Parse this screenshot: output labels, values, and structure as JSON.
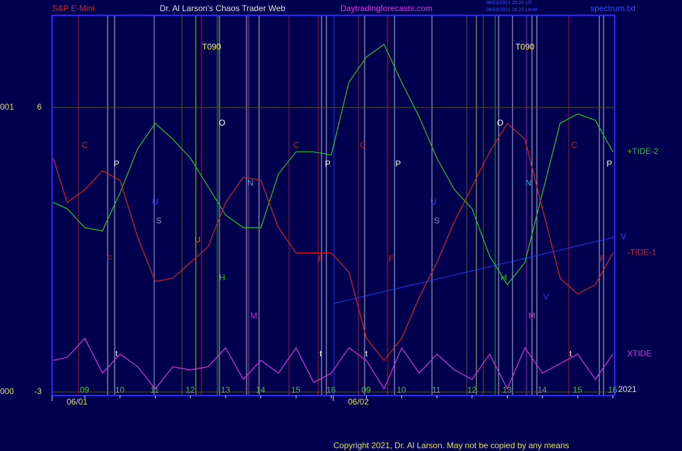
{
  "chart_data": {
    "type": "line",
    "header": {
      "instrument": "S&P E-Mini",
      "site": "Dr. Al Larson's Chaos Trader Web",
      "url": "Daytradingforecasts.com",
      "stamp_ut": "06/03/2021 20:20 UT",
      "stamp_local": "06/03/2021 16:20 Local",
      "file": "spectrum.txt"
    },
    "footer": "Copyright 2021, Dr. Al Larson. May not be copied by any means",
    "year": "2021",
    "x": [
      8.1,
      8.5,
      9,
      9.5,
      10,
      10.5,
      11,
      11.5,
      12,
      12.5,
      13,
      13.5,
      14,
      14.5,
      15,
      15.5,
      16,
      16.5,
      17,
      17.5,
      18,
      18.5,
      19,
      19.5,
      20,
      20.5,
      21,
      21.5,
      22,
      22.5,
      23,
      23.5,
      24
    ],
    "xlim": [
      8.07,
      24.05
    ],
    "xticks": [
      {
        "value": 9,
        "label": "09"
      },
      10,
      11,
      12,
      13,
      14,
      15,
      16,
      {
        "value": 17,
        "label": "09"
      },
      {
        "value": 18,
        "label": "10"
      },
      {
        "value": 19,
        "label": "11"
      },
      {
        "value": 20,
        "label": "12"
      },
      {
        "value": 21,
        "label": "13"
      },
      {
        "value": 22,
        "label": "14"
      },
      {
        "value": 23,
        "label": "15"
      },
      {
        "value": 24,
        "label": "16"
      }
    ],
    "date_ticks": [
      {
        "value": 8.07,
        "label": "06/01"
      },
      {
        "value": 16.06,
        "label": "06/02"
      }
    ],
    "ylim": [
      -3.11,
      8.92
    ],
    "yticks": [
      6,
      -3
    ],
    "price_labels": [
      "001",
      "000"
    ],
    "grid": true,
    "series": [
      {
        "name": "+TIDE-2",
        "color": "#20d020",
        "values": [
          3.0,
          2.8,
          2.2,
          2.1,
          3.3,
          4.7,
          5.5,
          5.0,
          4.4,
          3.5,
          2.6,
          2.2,
          2.2,
          3.9,
          4.6,
          4.6,
          4.5,
          6.8,
          7.6,
          8.0,
          6.8,
          5.7,
          4.4,
          3.4,
          2.8,
          1.3,
          0.4,
          1.1,
          3.3,
          5.5,
          5.8,
          5.6,
          4.6
        ]
      },
      {
        "name": "-TIDE-1",
        "color": "#e02020",
        "values": [
          4.4,
          3.0,
          3.4,
          4.0,
          3.7,
          1.9,
          0.5,
          0.6,
          1.1,
          1.6,
          3.0,
          3.8,
          3.7,
          2.2,
          1.4,
          1.4,
          1.4,
          0.8,
          -1.3,
          -2.0,
          -1.3,
          0.0,
          1.1,
          2.4,
          3.5,
          4.6,
          5.5,
          5.0,
          2.8,
          0.6,
          0.1,
          0.4,
          1.4
        ]
      },
      {
        "name": "XTIDE",
        "color": "#e030e0",
        "values": [
          -2.0,
          -1.9,
          -1.3,
          -2.4,
          -1.8,
          -2.2,
          -2.9,
          -2.2,
          -2.3,
          -2.2,
          -1.6,
          -2.6,
          -2.0,
          -2.4,
          -1.6,
          -2.7,
          -2.4,
          -1.6,
          -2.0,
          -2.9,
          -1.6,
          -2.4,
          -1.8,
          -2.3,
          -2.6,
          -1.8,
          -2.9,
          -1.6,
          -2.4,
          -2.1,
          -1.8,
          -2.6,
          -1.8
        ]
      }
    ],
    "trendline": {
      "color": "#2040ff",
      "x": [
        16.06,
        24.05
      ],
      "y": [
        -0.2,
        1.9
      ]
    },
    "annotations": [
      {
        "text": "C",
        "x": 9.0,
        "y": 4.8,
        "color": "#d02020"
      },
      {
        "text": "P",
        "x": 9.9,
        "y": 4.2,
        "color": "#ffffff"
      },
      {
        "text": "F",
        "x": 9.7,
        "y": 1.2,
        "color": "#d02020"
      },
      {
        "text": "U",
        "x": 11.0,
        "y": 3.0,
        "color": "#3040ff"
      },
      {
        "text": "S",
        "x": 11.1,
        "y": 2.4,
        "color": "#9090c0"
      },
      {
        "text": "T090",
        "x": 12.6,
        "y": 7.9,
        "color": "#ffff40"
      },
      {
        "text": "O",
        "x": 12.9,
        "y": 5.5,
        "color": "#ffffff"
      },
      {
        "text": "U",
        "x": 12.2,
        "y": 1.8,
        "color": "#c08020"
      },
      {
        "text": "H",
        "x": 12.9,
        "y": 0.6,
        "color": "#20d020"
      },
      {
        "text": "N",
        "x": 13.7,
        "y": 3.6,
        "color": "#20c0e0"
      },
      {
        "text": "M",
        "x": 13.8,
        "y": -0.6,
        "color": "#c030c0"
      },
      {
        "text": "C",
        "x": 15.0,
        "y": 4.8,
        "color": "#d02020"
      },
      {
        "text": "P",
        "x": 15.9,
        "y": 4.2,
        "color": "#ffffff"
      },
      {
        "text": "F",
        "x": 15.7,
        "y": 1.2,
        "color": "#d02020"
      },
      {
        "text": "t",
        "x": 9.9,
        "y": -1.8,
        "color": "#ffffff"
      },
      {
        "text": "t",
        "x": 15.7,
        "y": -1.8,
        "color": "#ffffff"
      },
      {
        "text": "C",
        "x": 16.9,
        "y": 4.8,
        "color": "#d02020"
      },
      {
        "text": "P",
        "x": 17.9,
        "y": 4.2,
        "color": "#ffffff"
      },
      {
        "text": "F",
        "x": 17.7,
        "y": 1.2,
        "color": "#d02020"
      },
      {
        "text": "U",
        "x": 18.9,
        "y": 3.0,
        "color": "#3040ff"
      },
      {
        "text": "S",
        "x": 19.0,
        "y": 2.4,
        "color": "#9090c0"
      },
      {
        "text": "T090",
        "x": 21.5,
        "y": 7.9,
        "color": "#ffff40"
      },
      {
        "text": "O",
        "x": 20.8,
        "y": 5.5,
        "color": "#ffffff"
      },
      {
        "text": "H",
        "x": 20.9,
        "y": 0.6,
        "color": "#20d020"
      },
      {
        "text": "N",
        "x": 21.6,
        "y": 3.6,
        "color": "#20c0e0"
      },
      {
        "text": "M",
        "x": 21.7,
        "y": -0.6,
        "color": "#c030c0"
      },
      {
        "text": "V",
        "x": 22.1,
        "y": 0.0,
        "color": "#3040ff"
      },
      {
        "text": "C",
        "x": 22.9,
        "y": 4.8,
        "color": "#d02020"
      },
      {
        "text": "P",
        "x": 23.9,
        "y": 4.2,
        "color": "#ffffff"
      },
      {
        "text": "F",
        "x": 23.7,
        "y": 1.2,
        "color": "#d02020"
      },
      {
        "text": "V",
        "x": 24.3,
        "y": 1.9,
        "color": "#3040ff"
      },
      {
        "text": "t",
        "x": 17.0,
        "y": -1.8,
        "color": "#ffffff"
      },
      {
        "text": "t",
        "x": 22.8,
        "y": -1.8,
        "color": "#ffffff"
      }
    ]
  }
}
